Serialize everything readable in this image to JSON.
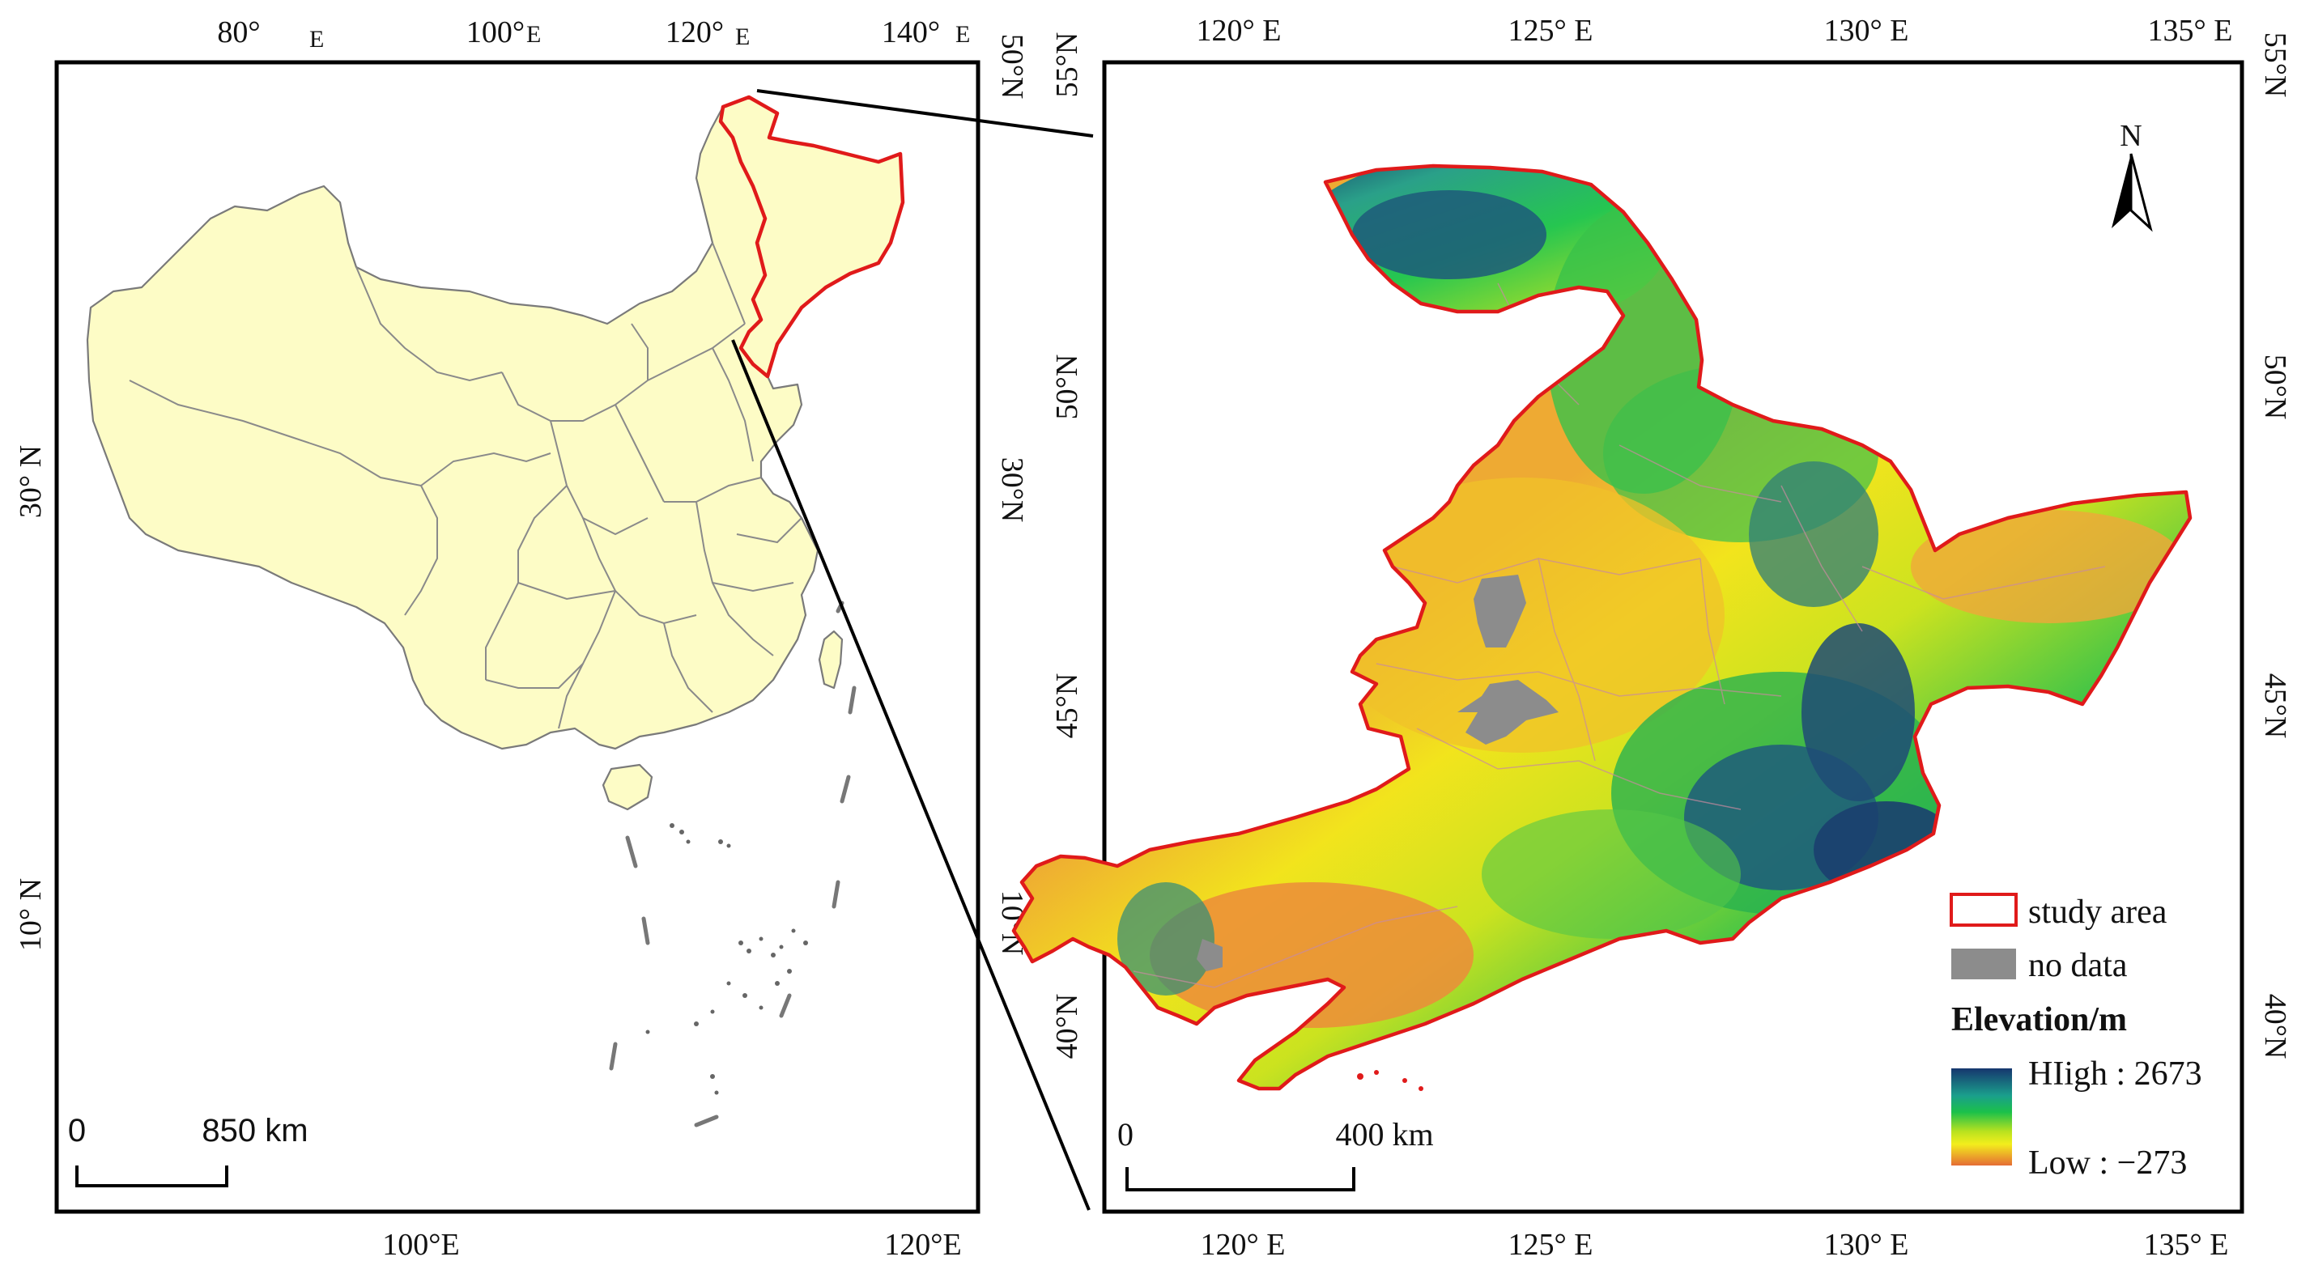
{
  "left_map": {
    "top_lon_ticks": [
      {
        "deg": "80°",
        "suffix": "E"
      },
      {
        "deg": "100°",
        "suffix": "E"
      },
      {
        "deg": "120°",
        "suffix": "E"
      },
      {
        "deg": "140°",
        "suffix": "E"
      }
    ],
    "bottom_lon_ticks": [
      "100°E",
      "120°E"
    ],
    "left_lat_ticks": [
      "30° N",
      "10° N"
    ],
    "right_lat_ticks": [
      "50°N",
      "30°N",
      "10°N"
    ],
    "scale_bar": {
      "start": "0",
      "end": "850 km"
    }
  },
  "right_map": {
    "lon_ticks": [
      "120° E",
      "125° E",
      "130° E",
      "135° E"
    ],
    "lat_ticks": [
      "55°N",
      "50°N",
      "45°N",
      "40°N"
    ],
    "north_arrow": "N",
    "scale_bar": {
      "start": "0",
      "end": "400 km"
    },
    "legend": {
      "study_area": "study area",
      "no_data": "no data",
      "elevation_title": "Elevation/m",
      "high": "HIigh : 2673",
      "low": "Low : −273"
    }
  },
  "colors": {
    "study_boundary": "#e01a1a",
    "china_fill": "#fdfcc6",
    "no_data": "#8c8c8c",
    "elevation_high": "#16366e",
    "elevation_mid_high": "#1bc04a",
    "elevation_mid": "#f3ee1c",
    "elevation_low": "#e56d34"
  }
}
